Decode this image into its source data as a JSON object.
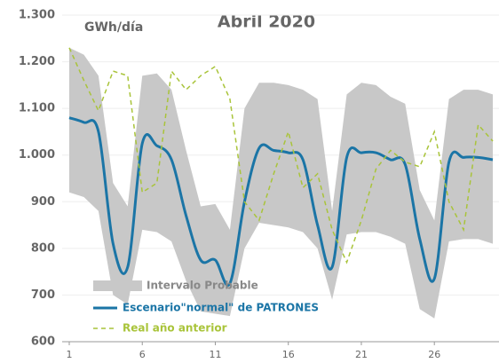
{
  "chart_data": {
    "type": "line",
    "title": "Abril 2020",
    "y_label": "GWh/día",
    "xlim": [
      1,
      30
    ],
    "xticks": [
      1,
      6,
      11,
      16,
      21,
      26
    ],
    "ylim": [
      600,
      1300
    ],
    "yticks": [
      {
        "value": 600,
        "label": "600"
      },
      {
        "value": 700,
        "label": "700"
      },
      {
        "value": 800,
        "label": "800"
      },
      {
        "value": 900,
        "label": "900"
      },
      {
        "value": 1000,
        "label": "1.000"
      },
      {
        "value": 1100,
        "label": "1.100"
      },
      {
        "value": 1200,
        "label": "1.200"
      },
      {
        "value": 1300,
        "label": "1.300"
      }
    ],
    "grid": true,
    "legend": "lower left",
    "x": [
      1,
      2,
      3,
      4,
      5,
      6,
      7,
      8,
      9,
      10,
      11,
      12,
      13,
      14,
      15,
      16,
      17,
      18,
      19,
      20,
      21,
      22,
      23,
      24,
      25,
      26,
      27,
      28,
      29,
      30
    ],
    "series": [
      {
        "name": "Intervalo Probable",
        "color": "#c8c8c8",
        "style": "band",
        "upper": [
          1230,
          1215,
          1170,
          940,
          890,
          1170,
          1175,
          1140,
          1010,
          890,
          895,
          840,
          1100,
          1155,
          1155,
          1150,
          1140,
          1120,
          880,
          1130,
          1155,
          1150,
          1125,
          1110,
          925,
          860,
          1120,
          1140,
          1140,
          1130
        ],
        "lower": [
          920,
          910,
          880,
          700,
          680,
          840,
          835,
          815,
          730,
          665,
          660,
          655,
          800,
          855,
          850,
          845,
          835,
          800,
          690,
          830,
          835,
          835,
          825,
          810,
          670,
          650,
          815,
          820,
          820,
          810
        ]
      },
      {
        "name": "Escenario\"normal\" de PATRONES",
        "color": "#1b75a6",
        "style": "solid",
        "values": [
          1080,
          1070,
          1050,
          810,
          760,
          1025,
          1020,
          990,
          870,
          775,
          775,
          725,
          900,
          1015,
          1010,
          1005,
          990,
          850,
          760,
          995,
          1005,
          1005,
          990,
          980,
          820,
          735,
          985,
          995,
          995,
          990
        ]
      },
      {
        "name": "Real año anterior",
        "color": "#a9c43a",
        "style": "dashed",
        "values": [
          1230,
          1160,
          1095,
          1180,
          1170,
          920,
          940,
          1180,
          1140,
          1170,
          1190,
          1120,
          900,
          860,
          960,
          1050,
          930,
          960,
          840,
          770,
          860,
          970,
          1010,
          985,
          975,
          1050,
          900,
          840,
          1065,
          1030
        ]
      }
    ]
  }
}
